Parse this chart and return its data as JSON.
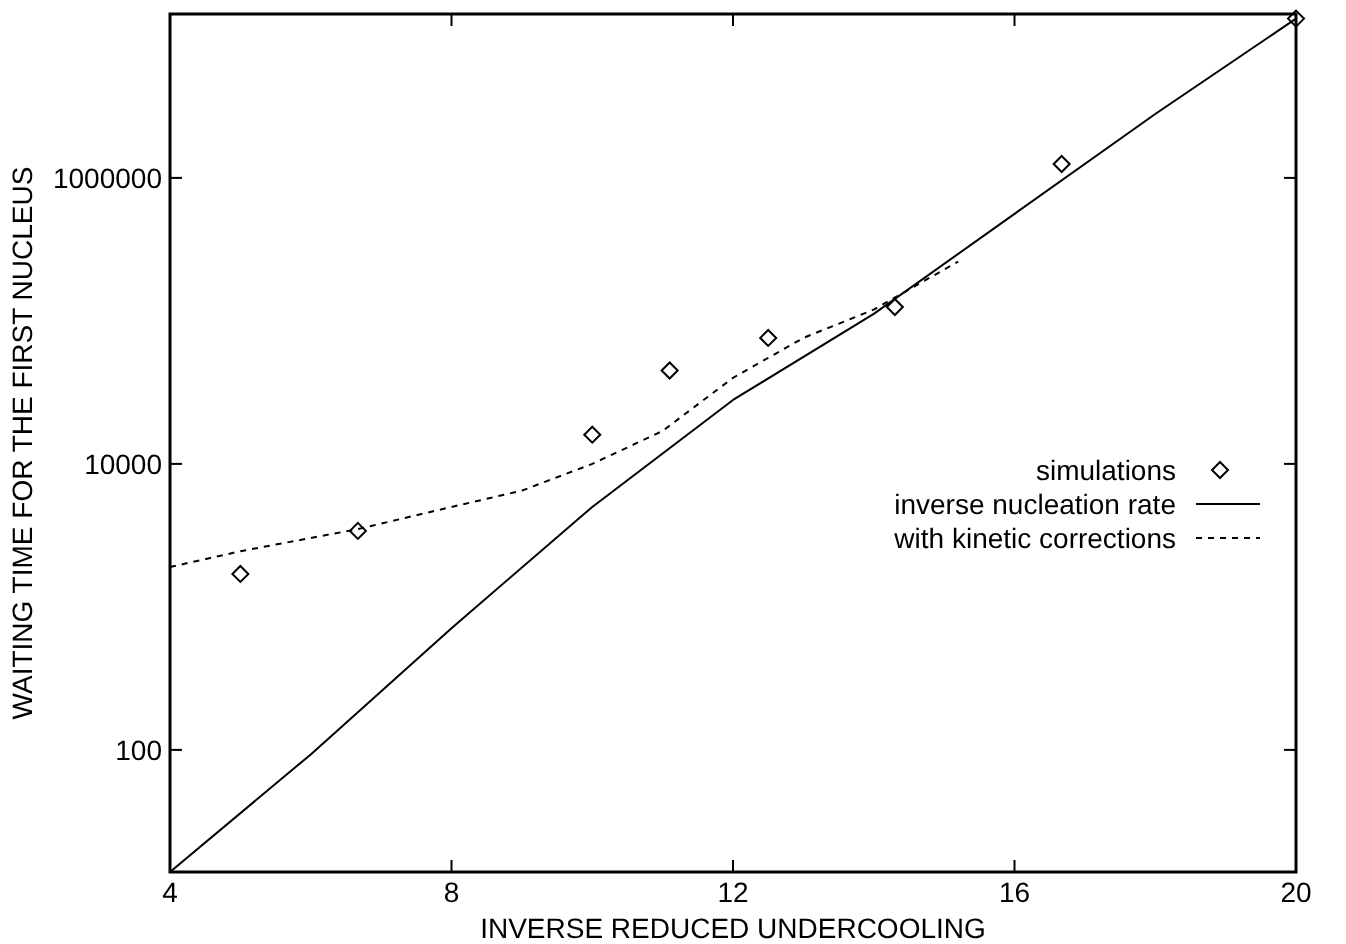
{
  "chart_data": {
    "type": "line",
    "xlabel": "INVERSE REDUCED UNDERCOOLING",
    "ylabel": "WAITING TIME FOR THE FIRST NUCLEUS",
    "log": "y",
    "xlim": [
      4,
      20
    ],
    "xticks": [
      4,
      8,
      12,
      16,
      20
    ],
    "ylim": [
      14,
      14000000
    ],
    "yticks": [
      100,
      10000,
      1000000
    ],
    "grid": false,
    "legend": "right",
    "series": [
      {
        "name": "simulations",
        "type": "scatter",
        "marker": "diamond",
        "color": "#000000",
        "x": [
          5,
          6.67,
          10,
          11.1,
          12.5,
          14.3,
          16.67,
          20
        ],
        "values": [
          1700,
          3400,
          16000,
          45000,
          76000,
          125000,
          1250000,
          13000000
        ]
      },
      {
        "name": "inverse nucleation rate",
        "line_style": "solid",
        "color": "#000000",
        "x": [
          4,
          6,
          8,
          10,
          12,
          14,
          16,
          18,
          20
        ],
        "values": [
          14,
          93,
          710,
          5000,
          28000,
          112000,
          560000,
          2800000,
          13000000
        ]
      },
      {
        "name": "with kinetic corrections",
        "line_style": "dashed",
        "color": "#000000",
        "x": [
          4,
          5,
          6.67,
          8,
          9,
          10,
          11,
          12,
          13,
          14,
          15.2
        ],
        "values": [
          1900,
          2450,
          3500,
          5000,
          6500,
          10000,
          17000,
          40000,
          76000,
          120000,
          260000
        ]
      }
    ]
  }
}
